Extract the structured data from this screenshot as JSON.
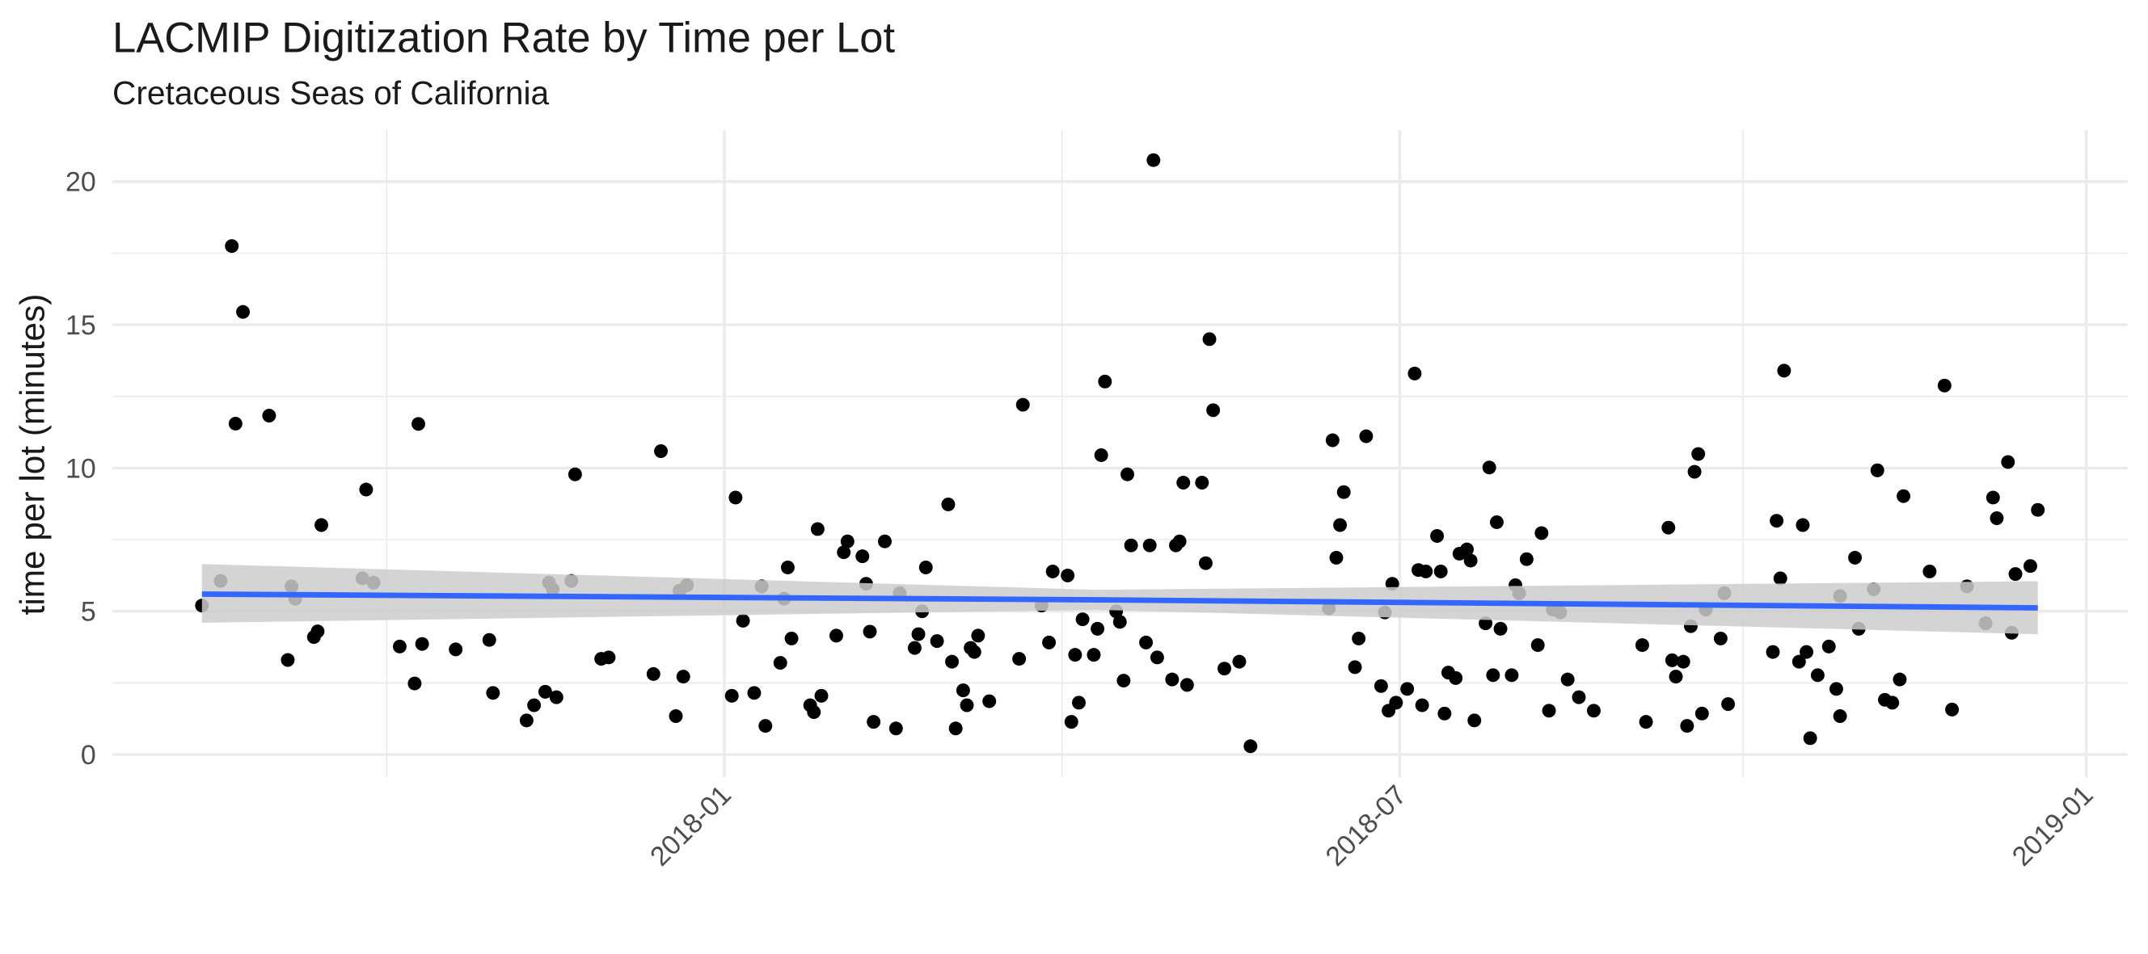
{
  "chart_data": {
    "type": "scatter",
    "title": "LACMIP Digitization Rate by Time per Lot",
    "subtitle": "Cretaceous Seas of California",
    "ylabel": "time per lot (minutes)",
    "xlim": [
      -164,
      376
    ],
    "xticks": [
      {
        "value": 0,
        "label": "2018-01"
      },
      {
        "value": 181,
        "label": "2018-07"
      },
      {
        "value": 365,
        "label": "2019-01"
      }
    ],
    "ylim": [
      -0.8,
      21.8
    ],
    "yticks": [
      0,
      5,
      10,
      15,
      20
    ],
    "grid": true,
    "color": "#000000",
    "x": [
      -140,
      -135,
      -132,
      -131,
      -129,
      -122,
      -117,
      -116,
      -115,
      -110,
      -109,
      -108,
      -97,
      -96,
      -94,
      -87,
      -83,
      -82,
      -81,
      -72,
      -63,
      -62,
      -53,
      -51,
      -48,
      -47,
      -46,
      -45,
      -41,
      -40,
      -33,
      -31,
      -19,
      -17,
      -13,
      -12,
      -11,
      -10,
      2,
      3,
      5,
      8,
      10,
      11,
      15,
      16,
      17,
      18,
      23,
      24,
      25,
      26,
      30,
      32,
      33,
      37,
      38,
      39,
      40,
      43,
      46,
      47,
      51,
      52,
      53,
      54,
      57,
      60,
      61,
      62,
      64,
      65,
      66,
      67,
      68,
      71,
      79,
      80,
      85,
      87,
      88,
      92,
      93,
      94,
      95,
      96,
      99,
      100,
      101,
      102,
      105,
      106,
      107,
      108,
      109,
      114,
      113,
      115,
      116,
      120,
      121,
      122,
      123,
      124,
      128,
      129,
      130,
      131,
      134,
      138,
      141,
      162,
      163,
      164,
      165,
      166,
      169,
      170,
      172,
      176,
      177,
      178,
      179,
      180,
      183,
      185,
      186,
      187,
      188,
      191,
      192,
      193,
      194,
      196,
      197,
      199,
      200,
      201,
      204,
      205,
      206,
      207,
      208,
      211,
      212,
      213,
      215,
      218,
      219,
      221,
      222,
      224,
      226,
      229,
      233,
      246,
      247,
      253,
      254,
      255,
      257,
      258,
      259,
      260,
      261,
      262,
      263,
      267,
      268,
      269,
      281,
      282,
      283,
      284,
      288,
      289,
      290,
      291,
      293,
      296,
      298,
      299,
      299,
      303,
      304,
      308,
      309,
      311,
      313,
      315,
      316,
      323,
      327,
      329,
      333,
      338,
      340,
      341,
      344,
      345,
      346,
      350,
      352
    ],
    "values": [
      5.2,
      6.06,
      17.75,
      11.55,
      15.45,
      11.83,
      3.3,
      5.87,
      5.44,
      4.1,
      4.3,
      8.01,
      6.15,
      9.25,
      6.0,
      3.77,
      2.48,
      11.54,
      3.86,
      3.67,
      4.0,
      2.15,
      1.19,
      1.72,
      2.19,
      6.0,
      5.77,
      2.0,
      6.06,
      9.78,
      3.34,
      3.39,
      2.81,
      10.59,
      1.34,
      5.72,
      2.72,
      5.91,
      2.05,
      8.97,
      4.67,
      2.15,
      5.87,
      1.0,
      3.2,
      5.44,
      6.53,
      4.05,
      1.72,
      1.48,
      7.87,
      2.05,
      4.15,
      7.06,
      7.44,
      6.92,
      5.96,
      4.29,
      1.14,
      7.44,
      0.91,
      5.63,
      3.72,
      4.2,
      5.0,
      6.53,
      3.96,
      8.73,
      3.24,
      0.91,
      2.24,
      1.72,
      3.72,
      3.58,
      4.15,
      1.86,
      3.34,
      12.21,
      5.2,
      3.91,
      6.39,
      6.25,
      1.14,
      3.48,
      1.81,
      4.72,
      3.48,
      4.39,
      10.45,
      13.02,
      5.0,
      4.63,
      2.58,
      9.78,
      7.3,
      7.3,
      3.91,
      20.75,
      3.39,
      2.62,
      7.3,
      7.44,
      9.49,
      2.43,
      9.49,
      6.68,
      14.5,
      12.02,
      3.0,
      3.24,
      0.29,
      5.1,
      10.97,
      6.87,
      8.01,
      9.16,
      3.05,
      4.05,
      11.11,
      2.39,
      4.96,
      1.53,
      5.96,
      1.81,
      2.29,
      13.3,
      6.44,
      1.72,
      6.39,
      7.63,
      6.39,
      1.43,
      2.86,
      2.67,
      7.01,
      7.16,
      6.77,
      1.19,
      4.58,
      10.02,
      2.77,
      8.11,
      4.39,
      2.77,
      5.91,
      5.63,
      6.82,
      3.82,
      7.73,
      1.53,
      5.06,
      4.96,
      2.62,
      2.0,
      1.53,
      3.82,
      1.14,
      7.92,
      3.29,
      2.72,
      3.24,
      1.0,
      4.48,
      9.87,
      10.49,
      1.43,
      5.06,
      4.05,
      5.63,
      1.76,
      3.58,
      8.16,
      6.15,
      13.4,
      3.24,
      8.01,
      3.58,
      0.57,
      2.77,
      3.77,
      2.29,
      5.53,
      1.34,
      6.87,
      4.39,
      5.77,
      9.92,
      1.91,
      1.81,
      2.62,
      9.02,
      6.39,
      12.88,
      1.57,
      5.87,
      4.58,
      8.97,
      8.25,
      10.21,
      4.25,
      6.3,
      6.58,
      8.54
    ],
    "trend": {
      "color": "#3366ff",
      "band_color": "#cccccc",
      "x": [
        -140,
        100,
        352
      ],
      "values": [
        5.6,
        5.4,
        5.12
      ],
      "lower": [
        4.6,
        5.05,
        4.2
      ],
      "upper": [
        6.65,
        5.75,
        6.05
      ]
    }
  }
}
